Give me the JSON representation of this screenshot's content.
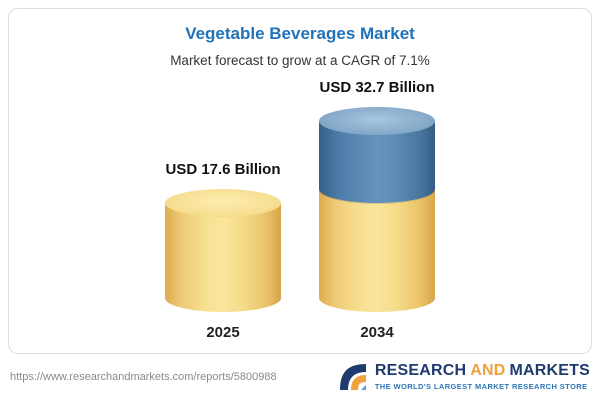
{
  "card": {
    "title": "Vegetable Beverages Market",
    "subtitle": "Market forecast to grow at a CAGR of 7.1%"
  },
  "chart_data": {
    "type": "bar",
    "subtype": "3d-cylinder",
    "title": "Vegetable Beverages Market",
    "subtitle": "Market forecast to grow at a CAGR of 7.1%",
    "unit": "USD Billion",
    "categories": [
      "2025",
      "2034"
    ],
    "values": [
      17.6,
      32.7
    ],
    "value_labels": [
      "USD 17.6 Billion",
      "USD 32.7 Billion"
    ],
    "cagr": "7.1%",
    "legend": "none",
    "notes": "2034 bar is stacked: yellow base equal to 2025 value, blue top is growth to 32.7",
    "colors": {
      "bar_yellow": "#F5DA88",
      "bar_blue": "#5D8CB6",
      "title_blue": "#2173B9"
    }
  },
  "footer": {
    "url": "https://www.researchandmarkets.com/reports/5800988",
    "brand": {
      "research": "RESEARCH",
      "and": "AND",
      "markets": "MARKETS",
      "tagline": "THE WORLD'S LARGEST MARKET RESEARCH STORE",
      "navy": "#1F3B6E",
      "orange": "#EFA23C",
      "tagline_blue": "#2E75B6"
    }
  }
}
